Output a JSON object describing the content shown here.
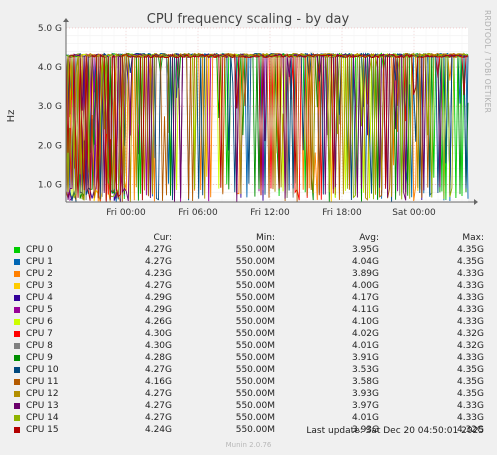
{
  "title": "CPU frequency scaling - by day",
  "side_label": "RRDTOOL / TOBI OETIKER",
  "y_axis_label": "Hz",
  "legend_headers": {
    "cur": "Cur:",
    "min": "Min:",
    "avg": "Avg:",
    "max": "Max:"
  },
  "last_update": "Last update: Sat Dec 20 04:50:01 2025",
  "munin_version": "Munin 2.0.76",
  "chart_data": {
    "type": "line",
    "title": "CPU frequency scaling - by day",
    "ylabel": "Hz",
    "y_ticks": [
      {
        "value": 1.0,
        "label": "1.0 G"
      },
      {
        "value": 2.0,
        "label": "2.0 G"
      },
      {
        "value": 3.0,
        "label": "3.0 G"
      },
      {
        "value": 4.0,
        "label": "4.0 G"
      },
      {
        "value": 5.0,
        "label": "5.0 G"
      }
    ],
    "x_ticks": [
      "Fri 00:00",
      "Fri 06:00",
      "Fri 12:00",
      "Fri 18:00",
      "Sat 00:00"
    ],
    "ylim": [
      0.55,
      5.0
    ],
    "grid": true,
    "legend_position": "bottom",
    "series": [
      {
        "name": "CPU 0",
        "color": "#00cc00",
        "cur": "4.27G",
        "min": "550.00M",
        "avg": "3.95G",
        "max": "4.35G"
      },
      {
        "name": "CPU 1",
        "color": "#0066b3",
        "cur": "4.27G",
        "min": "550.00M",
        "avg": "4.04G",
        "max": "4.35G"
      },
      {
        "name": "CPU 2",
        "color": "#ff8000",
        "cur": "4.23G",
        "min": "550.00M",
        "avg": "3.89G",
        "max": "4.33G"
      },
      {
        "name": "CPU 3",
        "color": "#ffcc00",
        "cur": "4.27G",
        "min": "550.00M",
        "avg": "4.00G",
        "max": "4.33G"
      },
      {
        "name": "CPU 4",
        "color": "#330099",
        "cur": "4.29G",
        "min": "550.00M",
        "avg": "4.17G",
        "max": "4.33G"
      },
      {
        "name": "CPU 5",
        "color": "#990099",
        "cur": "4.29G",
        "min": "550.00M",
        "avg": "4.11G",
        "max": "4.33G"
      },
      {
        "name": "CPU 6",
        "color": "#ccff00",
        "cur": "4.26G",
        "min": "550.00M",
        "avg": "4.10G",
        "max": "4.33G"
      },
      {
        "name": "CPU 7",
        "color": "#ff0000",
        "cur": "4.30G",
        "min": "550.00M",
        "avg": "4.02G",
        "max": "4.32G"
      },
      {
        "name": "CPU 8",
        "color": "#808080",
        "cur": "4.30G",
        "min": "550.00M",
        "avg": "4.01G",
        "max": "4.32G"
      },
      {
        "name": "CPU 9",
        "color": "#008f00",
        "cur": "4.28G",
        "min": "550.00M",
        "avg": "3.91G",
        "max": "4.33G"
      },
      {
        "name": "CPU 10",
        "color": "#00487d",
        "cur": "4.27G",
        "min": "550.00M",
        "avg": "3.53G",
        "max": "4.35G"
      },
      {
        "name": "CPU 11",
        "color": "#b35a00",
        "cur": "4.16G",
        "min": "550.00M",
        "avg": "3.58G",
        "max": "4.35G"
      },
      {
        "name": "CPU 12",
        "color": "#b38f00",
        "cur": "4.27G",
        "min": "550.00M",
        "avg": "3.93G",
        "max": "4.35G"
      },
      {
        "name": "CPU 13",
        "color": "#6b006b",
        "cur": "4.27G",
        "min": "550.00M",
        "avg": "3.97G",
        "max": "4.33G"
      },
      {
        "name": "CPU 14",
        "color": "#8fb300",
        "cur": "4.27G",
        "min": "550.00M",
        "avg": "4.01G",
        "max": "4.33G"
      },
      {
        "name": "CPU 15",
        "color": "#b30000",
        "cur": "4.24G",
        "min": "550.00M",
        "avg": "3.93G",
        "max": "4.32G"
      }
    ]
  }
}
